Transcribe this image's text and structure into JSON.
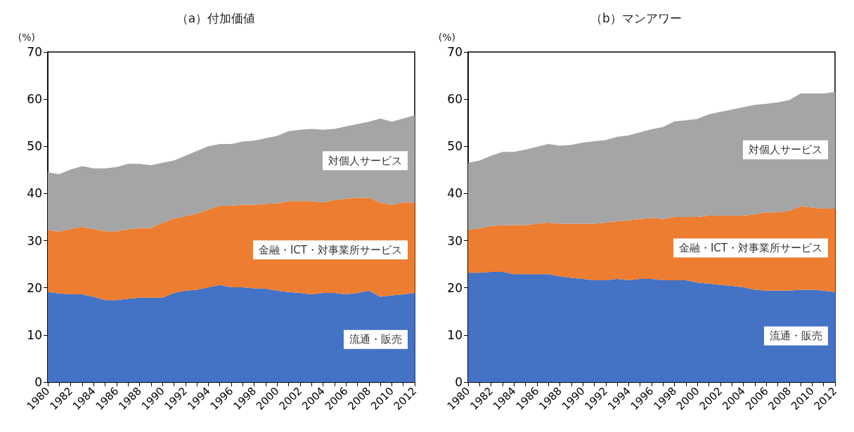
{
  "chart_data": [
    {
      "type": "area",
      "stacked": true,
      "title": "（a）付加価値",
      "ylabel": "(%)",
      "categories": [
        "1980",
        null,
        "1982",
        null,
        "1984",
        null,
        "1986",
        null,
        "1988",
        null,
        "1990",
        null,
        "1992",
        null,
        "1994",
        null,
        "1996",
        null,
        "1998",
        null,
        "2000",
        null,
        "2002",
        null,
        "2004",
        null,
        "2006",
        null,
        "2008",
        null,
        "2010",
        null,
        "2012"
      ],
      "ylim": [
        0,
        70
      ],
      "yticks": [
        0,
        10,
        20,
        30,
        40,
        50,
        60,
        70
      ],
      "series": [
        {
          "name": "流通・販売",
          "color": "#4472c4",
          "values": [
            19.1,
            18.8,
            18.6,
            18.6,
            18.1,
            17.4,
            17.4,
            17.7,
            17.9,
            17.9,
            17.9,
            18.9,
            19.4,
            19.6,
            20.1,
            20.6,
            20.1,
            20.1,
            19.9,
            19.8,
            19.4,
            19.1,
            18.9,
            18.6,
            18.9,
            18.9,
            18.6,
            18.9,
            19.4,
            18.1,
            18.4,
            18.6,
            18.9
          ]
        },
        {
          "name": "金融・ICT・対事業所サービス",
          "color": "#ed7d31",
          "values": [
            13.2,
            13.1,
            13.9,
            14.3,
            14.3,
            14.6,
            14.6,
            14.7,
            14.8,
            14.8,
            15.9,
            15.8,
            15.8,
            16.1,
            16.5,
            16.8,
            17.3,
            17.5,
            17.7,
            18.0,
            18.5,
            19.3,
            19.5,
            19.8,
            19.2,
            19.7,
            20.3,
            20.2,
            19.7,
            19.9,
            19.2,
            19.5,
            19.2
          ]
        },
        {
          "name": "対個人サービス",
          "color": "#a5a5a5",
          "values": [
            12.2,
            12.2,
            12.6,
            12.9,
            12.9,
            13.3,
            13.6,
            13.9,
            13.6,
            13.3,
            12.7,
            12.3,
            12.8,
            13.3,
            13.4,
            13.1,
            13.1,
            13.4,
            13.6,
            13.9,
            14.3,
            14.8,
            15.1,
            15.3,
            15.4,
            15.1,
            15.3,
            15.6,
            16.1,
            17.9,
            17.6,
            17.8,
            18.5
          ]
        }
      ]
    },
    {
      "type": "area",
      "stacked": true,
      "title": "（b）マンアワー",
      "ylabel": "(%)",
      "categories": [
        "1980",
        null,
        "1982",
        null,
        "1984",
        null,
        "1986",
        null,
        "1988",
        null,
        "1990",
        null,
        "1992",
        null,
        "1994",
        null,
        "1996",
        null,
        "1998",
        null,
        "2000",
        null,
        "2002",
        null,
        "2004",
        null,
        "2006",
        null,
        "2008",
        null,
        "2010",
        null,
        "2012"
      ],
      "ylim": [
        0,
        70
      ],
      "yticks": [
        0,
        10,
        20,
        30,
        40,
        50,
        60,
        70
      ],
      "series": [
        {
          "name": "流通・販売",
          "color": "#4472c4",
          "values": [
            23.2,
            23.2,
            23.4,
            23.4,
            22.9,
            22.9,
            22.9,
            22.9,
            22.4,
            22.1,
            21.9,
            21.6,
            21.6,
            21.9,
            21.6,
            21.9,
            21.9,
            21.6,
            21.6,
            21.6,
            21.1,
            20.9,
            20.6,
            20.4,
            20.1,
            19.6,
            19.4,
            19.4,
            19.4,
            19.6,
            19.6,
            19.4,
            19.1
          ]
        },
        {
          "name": "金融・ICT・対事業所サービス",
          "color": "#ed7d31",
          "values": [
            9.1,
            9.4,
            9.7,
            9.9,
            10.4,
            10.4,
            10.7,
            10.9,
            11.2,
            11.5,
            11.7,
            12.0,
            12.2,
            12.2,
            12.7,
            12.7,
            12.9,
            13.0,
            13.4,
            13.4,
            13.9,
            14.4,
            14.7,
            14.9,
            15.2,
            16.0,
            16.6,
            16.6,
            16.9,
            17.7,
            17.4,
            17.4,
            17.7
          ]
        },
        {
          "name": "対個人サービス",
          "color": "#a5a5a5",
          "values": [
            14.2,
            14.4,
            14.9,
            15.5,
            15.5,
            16.0,
            16.3,
            16.7,
            16.5,
            16.7,
            17.2,
            17.5,
            17.5,
            17.9,
            18.0,
            18.4,
            18.8,
            19.5,
            20.3,
            20.5,
            20.8,
            21.5,
            22.0,
            22.5,
            23.0,
            23.2,
            23.0,
            23.3,
            23.5,
            23.9,
            24.2,
            24.4,
            24.7
          ]
        }
      ]
    }
  ]
}
